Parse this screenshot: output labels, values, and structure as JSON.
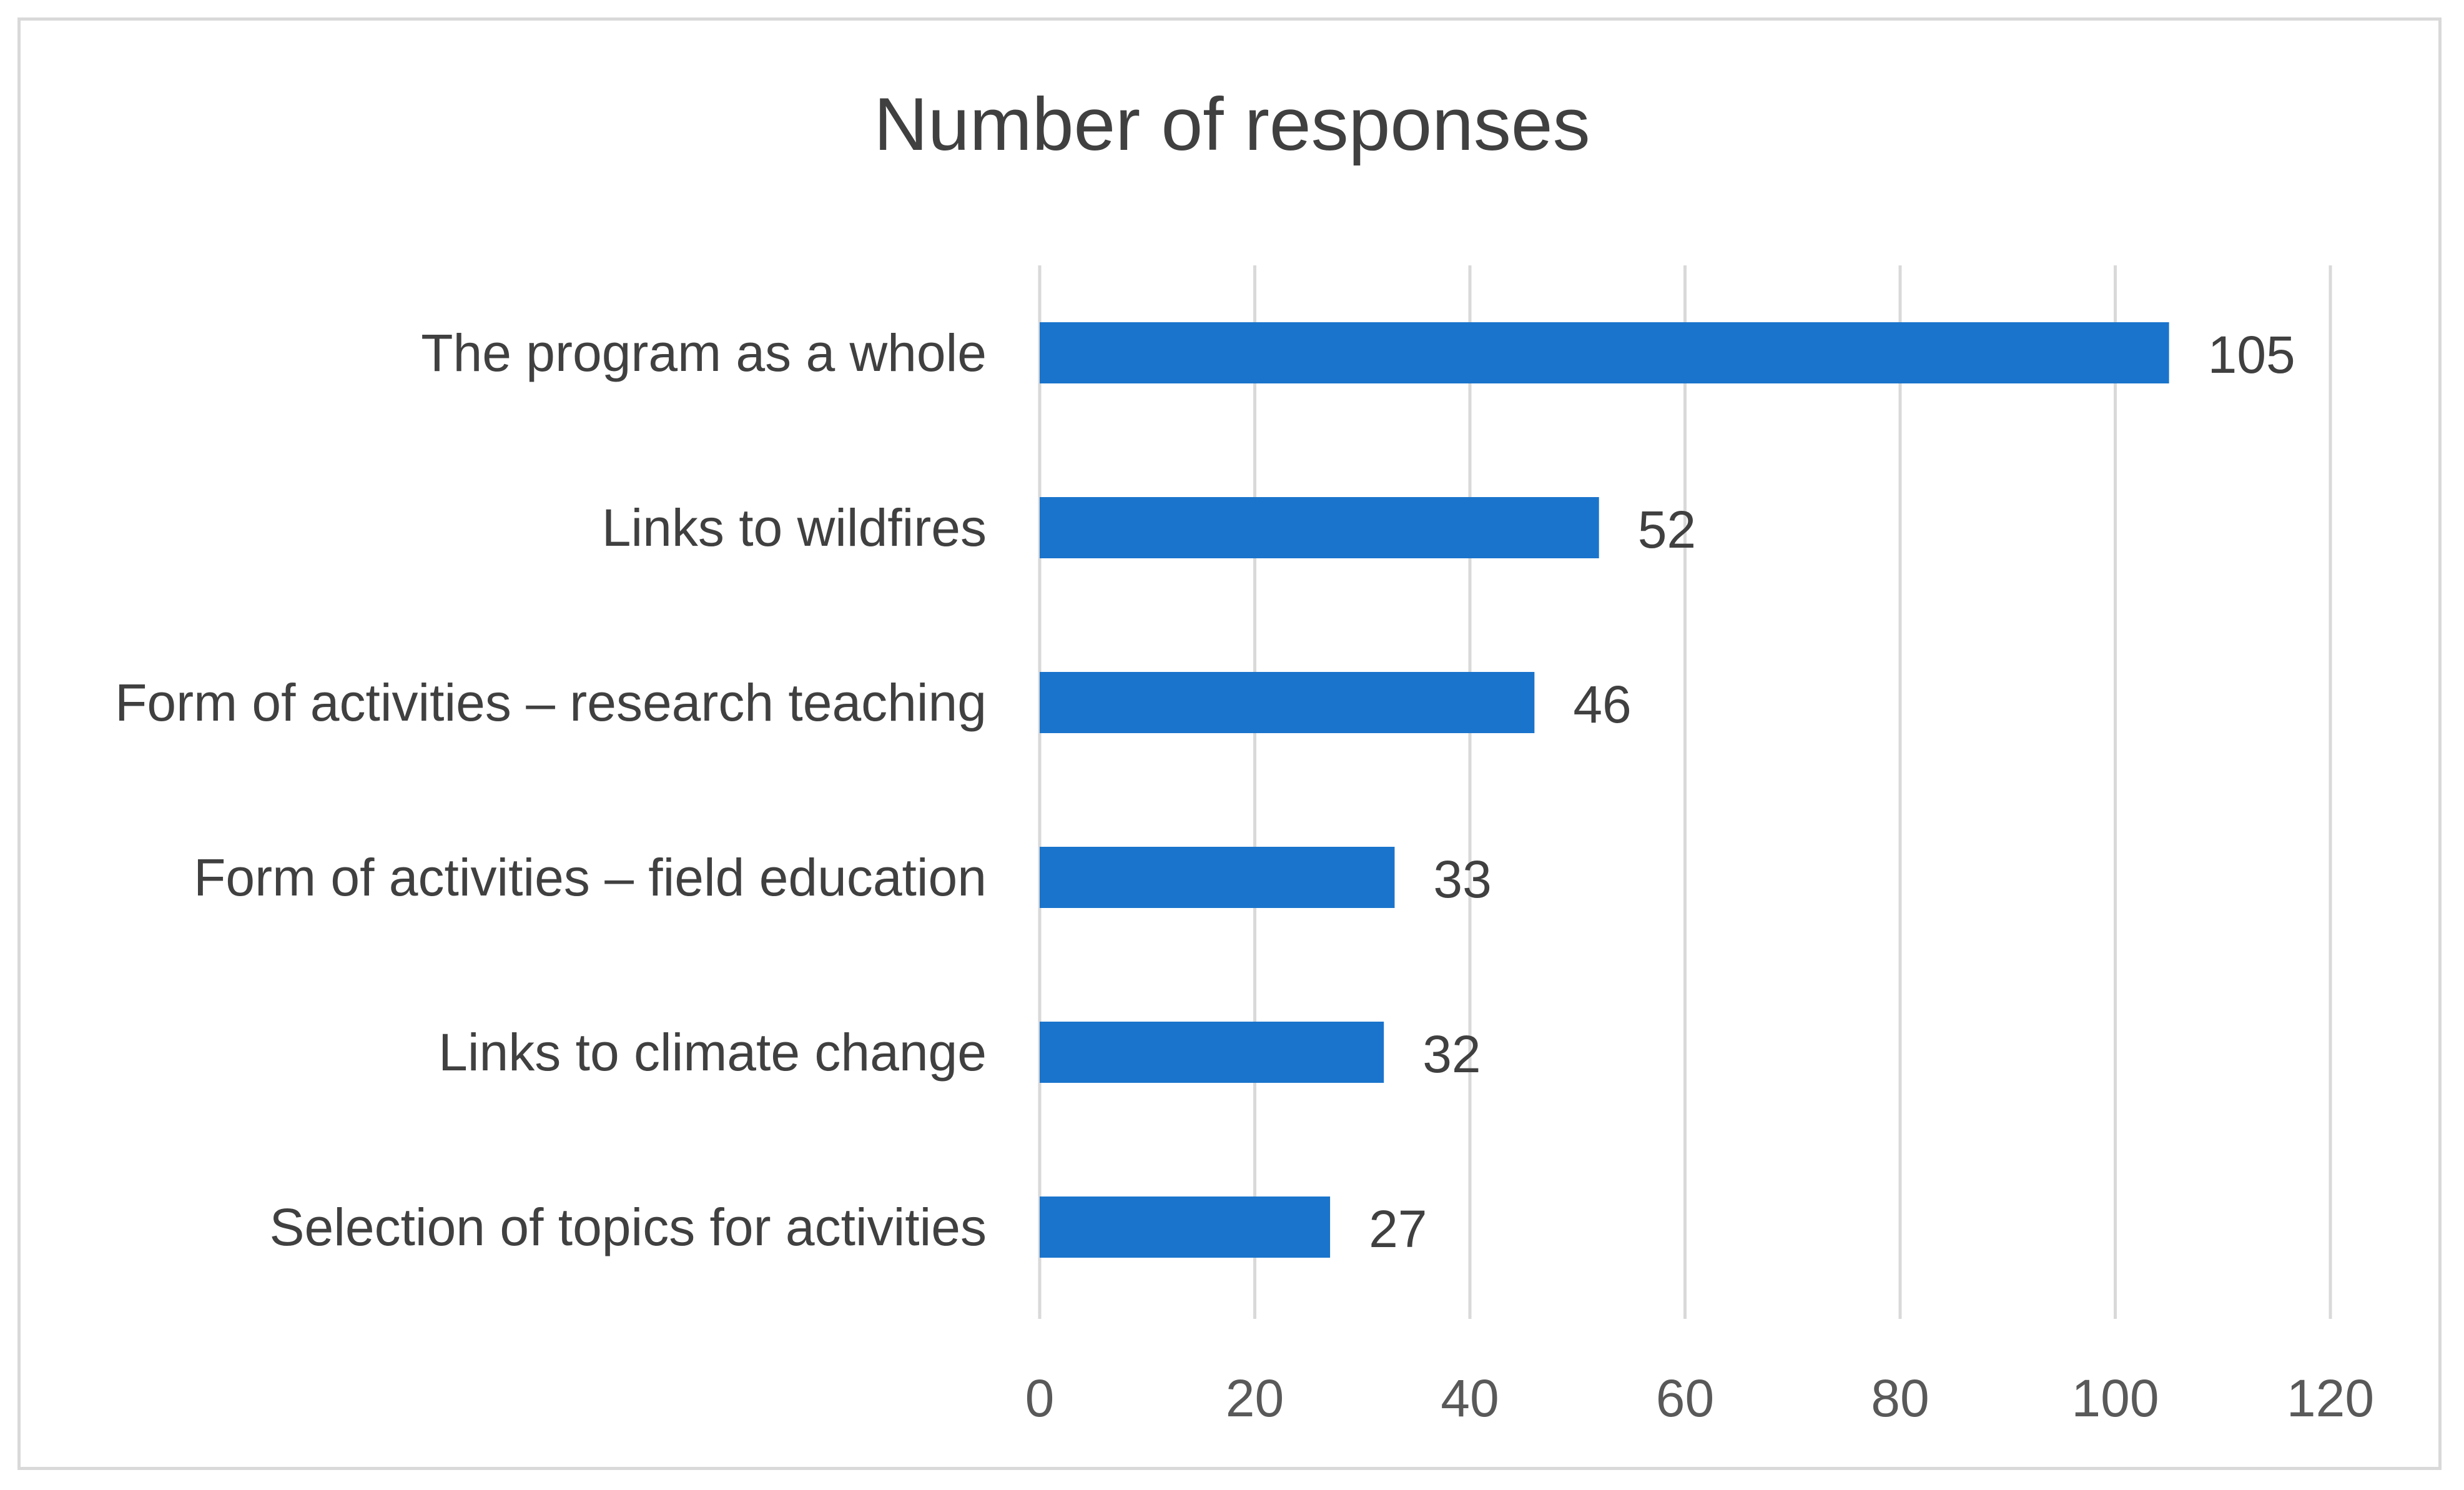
{
  "chart_data": {
    "type": "bar",
    "orientation": "horizontal",
    "title": "Number of responses",
    "categories": [
      "The program as a whole",
      "Links to wildfires",
      "Form of activities – research teaching",
      "Form of activities – field education",
      "Links to climate change",
      "Selection of topics for activities"
    ],
    "values": [
      105,
      52,
      46,
      33,
      32,
      27
    ],
    "data_labels": [
      "105",
      "52",
      "46",
      "33",
      "32",
      "27"
    ],
    "xlim": [
      0,
      120
    ],
    "x_ticks": [
      0,
      20,
      40,
      60,
      80,
      100,
      120
    ],
    "x_tick_labels": [
      "0",
      "20",
      "40",
      "60",
      "80",
      "100",
      "120"
    ],
    "xlabel": "",
    "ylabel": "",
    "grid": true,
    "legend": "none",
    "colors": {
      "bar": "#1a74cc",
      "grid": "#d9d9d9",
      "text": "#404040",
      "frame": "#d9d9d9"
    }
  }
}
